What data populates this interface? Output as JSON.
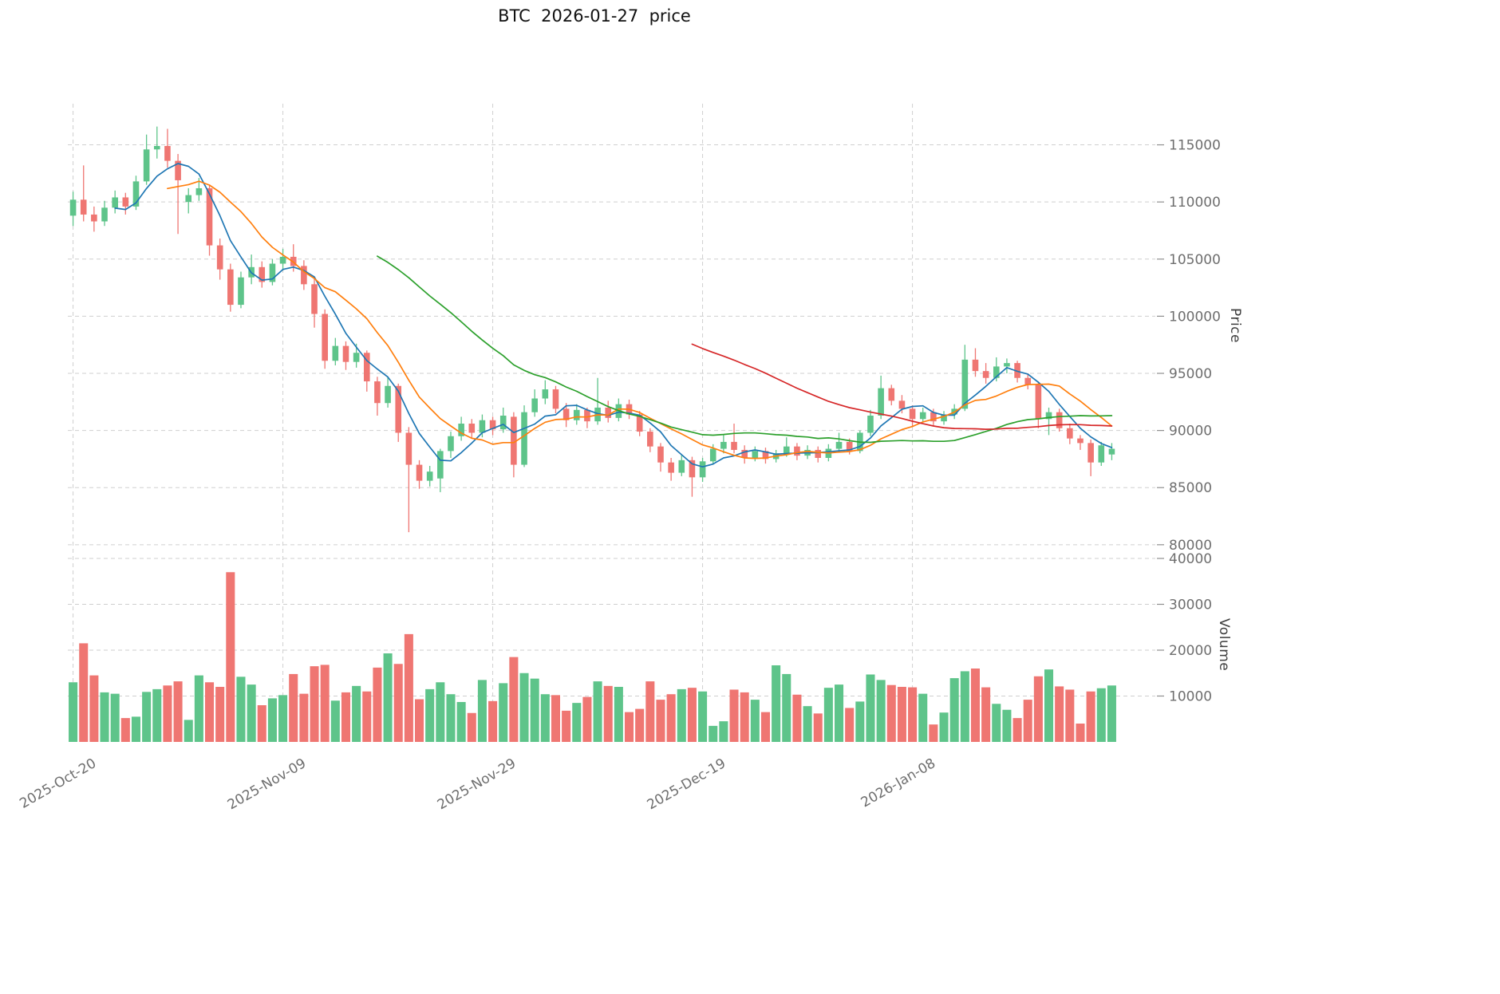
{
  "title": "BTC  2026-01-27  price",
  "axes": {
    "price_label": "Price",
    "volume_label": "Volume"
  },
  "chart_data": {
    "type": "candlestick",
    "title": "BTC  2026-01-27  price",
    "ylabel_right": "Price",
    "ylabel2_right": "Volume",
    "ylim": [
      79500,
      118600
    ],
    "volume_ylim": [
      0,
      40000
    ],
    "grid": true,
    "price_ticks": [
      80000,
      85000,
      90000,
      95000,
      100000,
      105000,
      110000,
      115000
    ],
    "volume_ticks": [
      10000,
      20000,
      30000,
      40000
    ],
    "x_ticks": [
      {
        "index": 0,
        "label": "2025-Oct-20"
      },
      {
        "index": 20,
        "label": "2025-Nov-09"
      },
      {
        "index": 40,
        "label": "2025-Nov-29"
      },
      {
        "index": 60,
        "label": "2025-Dec-19"
      },
      {
        "index": 80,
        "label": "2026-Jan-08"
      }
    ],
    "colors": {
      "up": "#5ec48a",
      "down": "#ef7672",
      "ma5": "#1f77b4",
      "ma10": "#ff7f0e",
      "ma30": "#2ca02c",
      "ma60": "#d62728",
      "grid": "#cfcfcf",
      "tick_text": "#6e6e6e",
      "axis_label_text": "#3d3d3d",
      "title_text": "#111111"
    },
    "moving_averages": [
      {
        "window": 5,
        "color_key": "ma5"
      },
      {
        "window": 10,
        "color_key": "ma10"
      },
      {
        "window": 30,
        "color_key": "ma30"
      },
      {
        "window": 60,
        "color_key": "ma60"
      }
    ],
    "ohlc": [
      [
        108800,
        110900,
        107900,
        110200
      ],
      [
        110200,
        113200,
        108300,
        108900
      ],
      [
        108900,
        109600,
        107400,
        108300
      ],
      [
        108300,
        110100,
        107900,
        109500
      ],
      [
        109500,
        111000,
        109000,
        110400
      ],
      [
        110400,
        110800,
        108900,
        109600
      ],
      [
        109600,
        112300,
        109300,
        111800
      ],
      [
        111800,
        115900,
        111500,
        114600
      ],
      [
        114600,
        116600,
        113800,
        114900
      ],
      [
        114900,
        116400,
        113000,
        113600
      ],
      [
        113600,
        114200,
        107200,
        111900
      ],
      [
        110000,
        111200,
        109000,
        110600
      ],
      [
        110600,
        112100,
        110100,
        111200
      ],
      [
        111200,
        111500,
        105300,
        106200
      ],
      [
        106200,
        106800,
        103200,
        104100
      ],
      [
        104100,
        104600,
        100400,
        101000
      ],
      [
        101000,
        103900,
        100700,
        103400
      ],
      [
        103400,
        105400,
        102800,
        104300
      ],
      [
        104300,
        104800,
        102500,
        103000
      ],
      [
        103000,
        105000,
        102700,
        104600
      ],
      [
        104600,
        105900,
        104000,
        105200
      ],
      [
        105200,
        106300,
        103900,
        104400
      ],
      [
        104400,
        104900,
        102300,
        102800
      ],
      [
        102800,
        103300,
        99000,
        100200
      ],
      [
        100200,
        100600,
        95400,
        96100
      ],
      [
        96100,
        98100,
        95700,
        97400
      ],
      [
        97400,
        97800,
        95300,
        96000
      ],
      [
        96000,
        97600,
        95500,
        96800
      ],
      [
        96800,
        97000,
        93400,
        94300
      ],
      [
        94300,
        94700,
        91300,
        92400
      ],
      [
        92400,
        94700,
        92000,
        93900
      ],
      [
        93900,
        94100,
        89000,
        89800
      ],
      [
        89800,
        90300,
        81100,
        87000
      ],
      [
        87000,
        87400,
        84900,
        85600
      ],
      [
        85600,
        86900,
        85100,
        86400
      ],
      [
        85800,
        88400,
        84600,
        88200
      ],
      [
        88200,
        89900,
        87600,
        89500
      ],
      [
        89500,
        91200,
        89100,
        90600
      ],
      [
        90600,
        91000,
        89300,
        89800
      ],
      [
        89800,
        91400,
        89400,
        90900
      ],
      [
        90900,
        91200,
        89600,
        90100
      ],
      [
        90100,
        92000,
        89800,
        91300
      ],
      [
        91200,
        91600,
        85900,
        87000
      ],
      [
        87000,
        92200,
        86800,
        91600
      ],
      [
        91600,
        93600,
        91200,
        92800
      ],
      [
        92800,
        94400,
        92300,
        93600
      ],
      [
        93600,
        93900,
        91500,
        91900
      ],
      [
        91900,
        92400,
        90300,
        90900
      ],
      [
        90900,
        92300,
        90500,
        91800
      ],
      [
        91800,
        92000,
        90200,
        90800
      ],
      [
        90800,
        94600,
        90500,
        92000
      ],
      [
        92000,
        92600,
        90700,
        91100
      ],
      [
        91100,
        92800,
        90800,
        92300
      ],
      [
        92300,
        92700,
        91000,
        91400
      ],
      [
        91400,
        91700,
        89500,
        89900
      ],
      [
        89900,
        90200,
        88100,
        88600
      ],
      [
        88600,
        88900,
        86400,
        87200
      ],
      [
        87200,
        87600,
        85600,
        86300
      ],
      [
        86300,
        87900,
        86000,
        87400
      ],
      [
        87400,
        87700,
        84200,
        85900
      ],
      [
        85900,
        87600,
        85500,
        87300
      ],
      [
        87300,
        88800,
        87000,
        88400
      ],
      [
        88400,
        89600,
        88000,
        89000
      ],
      [
        89000,
        90600,
        88000,
        88300
      ],
      [
        88300,
        88700,
        87100,
        87600
      ],
      [
        87600,
        88600,
        87300,
        88200
      ],
      [
        88200,
        88500,
        87100,
        87500
      ],
      [
        87500,
        88300,
        87200,
        88000
      ],
      [
        88000,
        89400,
        87700,
        88600
      ],
      [
        88600,
        88900,
        87400,
        87800
      ],
      [
        87800,
        88700,
        87500,
        88300
      ],
      [
        88300,
        88600,
        87200,
        87600
      ],
      [
        87600,
        88800,
        87300,
        88400
      ],
      [
        88400,
        89800,
        88100,
        89000
      ],
      [
        89000,
        89300,
        87900,
        88200
      ],
      [
        88200,
        90000,
        88000,
        89800
      ],
      [
        89800,
        91800,
        89500,
        91300
      ],
      [
        91300,
        94800,
        91000,
        93700
      ],
      [
        93700,
        94000,
        92200,
        92600
      ],
      [
        92600,
        93100,
        91500,
        91900
      ],
      [
        91900,
        92200,
        90300,
        91000
      ],
      [
        91000,
        92000,
        90700,
        91600
      ],
      [
        91600,
        91900,
        90400,
        90800
      ],
      [
        90800,
        91700,
        90500,
        91400
      ],
      [
        91400,
        92300,
        91000,
        91900
      ],
      [
        91900,
        97500,
        91700,
        96200
      ],
      [
        96200,
        97200,
        94700,
        95200
      ],
      [
        95200,
        95900,
        94100,
        94600
      ],
      [
        94600,
        96400,
        94300,
        95600
      ],
      [
        95600,
        96300,
        95000,
        95900
      ],
      [
        95900,
        96100,
        94200,
        94600
      ],
      [
        94600,
        95000,
        93600,
        94000
      ],
      [
        94000,
        94300,
        90200,
        91000
      ],
      [
        91000,
        92000,
        89600,
        91600
      ],
      [
        91600,
        91900,
        89900,
        90200
      ],
      [
        90200,
        90600,
        88800,
        89300
      ],
      [
        89300,
        89600,
        88300,
        88900
      ],
      [
        88900,
        89200,
        86000,
        87200
      ],
      [
        87200,
        89000,
        86900,
        88700
      ],
      [
        87900,
        88900,
        87400,
        88400
      ]
    ],
    "volume": [
      13000,
      21500,
      14500,
      10800,
      10500,
      5200,
      5500,
      10900,
      11500,
      12300,
      13200,
      4800,
      14500,
      13000,
      12000,
      37000,
      14200,
      12500,
      8000,
      9500,
      10200,
      14800,
      10500,
      16500,
      16800,
      9000,
      10800,
      12200,
      11000,
      16200,
      19300,
      17000,
      23500,
      9300,
      11500,
      13000,
      10400,
      8700,
      6300,
      13500,
      8900,
      12800,
      18500,
      15000,
      13800,
      10400,
      10200,
      6800,
      8500,
      9800,
      13200,
      12200,
      12000,
      6500,
      7200,
      13200,
      9200,
      10400,
      11500,
      11800,
      11000,
      3500,
      4500,
      11400,
      10800,
      9200,
      6500,
      16700,
      14800,
      10300,
      7800,
      6200,
      11800,
      12500,
      7400,
      8800,
      14700,
      13500,
      12400,
      12000,
      11900,
      10500,
      3800,
      6400,
      13900,
      15400,
      16000,
      11900,
      8300,
      7000,
      5200,
      9200,
      14300,
      15800,
      12100,
      11400,
      4000,
      11000,
      11700,
      12300
    ]
  }
}
